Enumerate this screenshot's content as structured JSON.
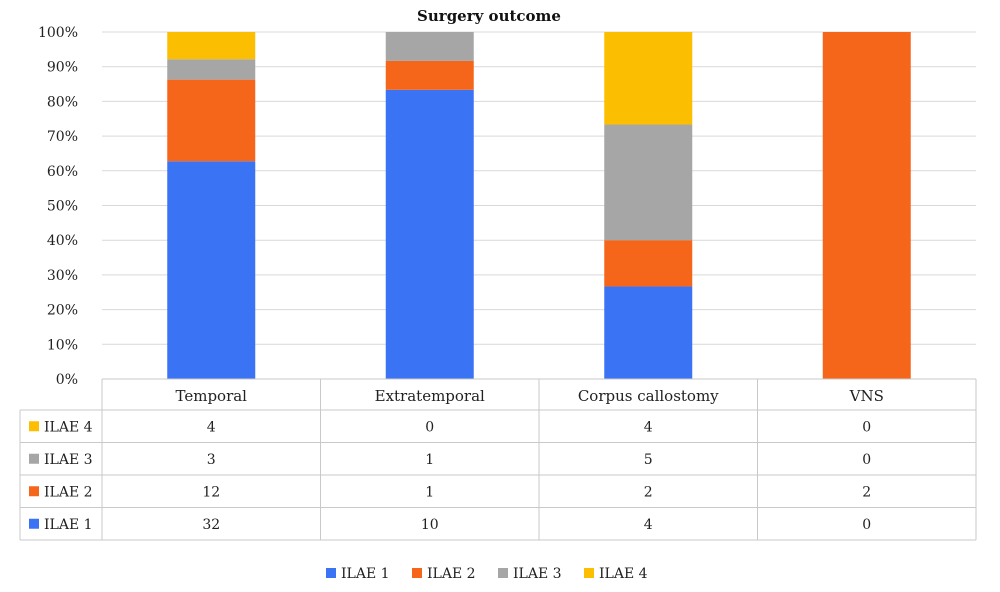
{
  "chart_data": {
    "type": "bar",
    "stacked": "percent",
    "title": "Surgery outcome",
    "categories": [
      "Temporal",
      "Extratemporal",
      "Corpus callostomy",
      "VNS"
    ],
    "series": [
      {
        "name": "ILAE 1",
        "values": [
          32,
          10,
          4,
          0
        ],
        "color": "#3b73f5"
      },
      {
        "name": "ILAE 2",
        "values": [
          12,
          1,
          2,
          2
        ],
        "color": "#f5661b"
      },
      {
        "name": "ILAE 3",
        "values": [
          3,
          1,
          5,
          0
        ],
        "color": "#a6a6a6"
      },
      {
        "name": "ILAE 4",
        "values": [
          4,
          0,
          4,
          0
        ],
        "color": "#fcbe00"
      }
    ],
    "yticks": [
      "0%",
      "10%",
      "20%",
      "30%",
      "40%",
      "50%",
      "60%",
      "70%",
      "80%",
      "90%",
      "100%"
    ],
    "ylim": [
      0,
      100
    ],
    "grid": true,
    "data_table": true,
    "legend_position": "bottom"
  }
}
